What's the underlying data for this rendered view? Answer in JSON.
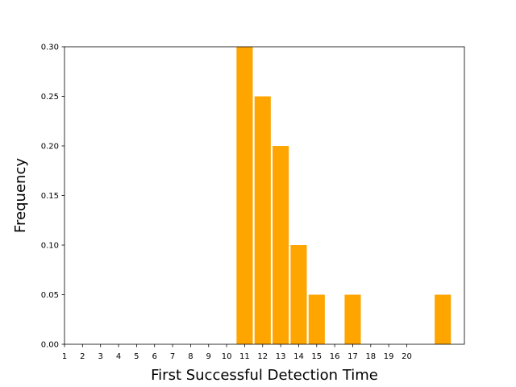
{
  "chart_data": {
    "type": "bar",
    "xlabel": "First Successful Detection Time",
    "ylabel": "Frequency",
    "x_ticks": [
      "1",
      "2",
      "3",
      "4",
      "5",
      "6",
      "7",
      "8",
      "9",
      "10",
      "11",
      "12",
      "13",
      "14",
      "15",
      "16",
      "17",
      "18",
      "19",
      "20"
    ],
    "y_ticks": [
      "0.00",
      "0.05",
      "0.10",
      "0.15",
      "0.20",
      "0.25",
      "0.30"
    ],
    "xlim": [
      1,
      23.2
    ],
    "ylim": [
      0,
      0.3
    ],
    "bar_width": 0.9,
    "bars": [
      {
        "x": 11,
        "value": 0.3
      },
      {
        "x": 12,
        "value": 0.25
      },
      {
        "x": 13,
        "value": 0.2
      },
      {
        "x": 14,
        "value": 0.1
      },
      {
        "x": 15,
        "value": 0.05
      },
      {
        "x": 17,
        "value": 0.05
      },
      {
        "x": 22,
        "value": 0.05
      }
    ],
    "bar_color": "#ffa500",
    "grid": false,
    "legend": "none"
  }
}
